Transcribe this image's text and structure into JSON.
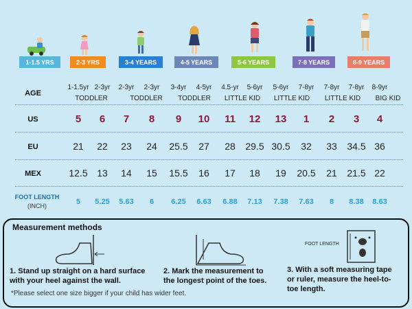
{
  "age_groups": [
    {
      "label": "1-1.5 YRS",
      "color": "#57b6dc"
    },
    {
      "label": "2-3 YRS",
      "color": "#f08c1f"
    },
    {
      "label": "3-4 YEARS",
      "color": "#2b7fd0"
    },
    {
      "label": "4-5 YEARS",
      "color": "#6d86b8"
    },
    {
      "label": "5-6 YEARS",
      "color": "#8dc63f"
    },
    {
      "label": "7-8 YEARS",
      "color": "#7a6fb8"
    },
    {
      "label": "8-9 YEARS",
      "color": "#e87d6a"
    }
  ],
  "table": {
    "age_label": "AGE",
    "ages": [
      "1-1.5yr",
      "2-3yr",
      "2-3yr",
      "2-3yr",
      "3-4yr",
      "4-5yr",
      "4.5-yr",
      "5-6yr",
      "5-6yr",
      "7-8yr",
      "7-8yr",
      "7-8yr",
      "8-9yr"
    ],
    "categories": [
      "TODDLER",
      "TODDLER",
      "TODDLER",
      "LITTLE KID",
      "LITTLE KID",
      "LITTLE KID",
      "BIG KID"
    ],
    "us_label": "US",
    "us": [
      "5",
      "6",
      "7",
      "8",
      "9",
      "10",
      "11",
      "12",
      "13",
      "1",
      "2",
      "3",
      "4"
    ],
    "eu_label": "EU",
    "eu": [
      "21",
      "22",
      "23",
      "24",
      "25.5",
      "27",
      "28",
      "29.5",
      "30.5",
      "32",
      "33",
      "34.5",
      "36"
    ],
    "mex_label": "MEX",
    "mex": [
      "12.5",
      "13",
      "14",
      "15",
      "15.5",
      "16",
      "17",
      "18",
      "19",
      "20.5",
      "21",
      "21.5",
      "22"
    ],
    "foot_label": "FOOT LENGTH",
    "foot_unit": "(INCH)",
    "foot": [
      "5",
      "5.25",
      "5.63",
      "6",
      "6.25",
      "6.63",
      "6.88",
      "7.13",
      "7.38",
      "7.63",
      "8",
      "8.38",
      "8.63"
    ]
  },
  "measurement": {
    "title": "Measurement methods",
    "step1_line1": "1. Stand up straight on a hard surface",
    "step1_line2": "with your heel against the wall.",
    "step2_line1": "2. Mark the measurement to",
    "step2_line2": "the longest point of the toes.",
    "step3_line1": "3. With a soft measuring tape",
    "step3_line2": "or ruler, measure the heel-to-",
    "step3_line3": "toe length.",
    "foot_length_label": "FOOT LENGTH",
    "note": "*Please select one size bigger if your child has wider feet."
  }
}
